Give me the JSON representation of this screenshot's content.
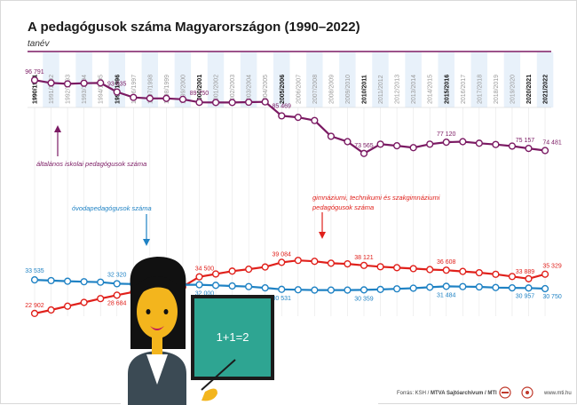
{
  "title": "A pedagógusok száma Magyarországon (1990–2022)",
  "subtitle": "tanév",
  "source_prefix": "Forrás: KSH / ",
  "source_bold": "MTVA Sajtóarchívum / MTI",
  "website": "www.mti.hu",
  "illustration": {
    "board_text": "1+1=2"
  },
  "colors": {
    "primary": "#7b1a63",
    "secondary": "#e0201b",
    "preschool": "#1f82c4",
    "band": "#e8f1fa"
  },
  "chart_data": {
    "type": "line",
    "categories": [
      "1990/1991",
      "1991/1992",
      "1992/1993",
      "1993/1994",
      "1994/1995",
      "1995/1996",
      "1996/1997",
      "1997/1998",
      "1998/1999",
      "1999/2000",
      "2000/2001",
      "2001/2002",
      "2002/2003",
      "2003/2004",
      "2004/2005",
      "2005/2006",
      "2006/2007",
      "2007/2008",
      "2008/2009",
      "2009/2010",
      "2010/2011",
      "2011/2012",
      "2012/2013",
      "2013/2014",
      "2014/2015",
      "2015/2016",
      "2016/2017",
      "2017/2018",
      "2018/2019",
      "2019/2020",
      "2020/2021",
      "2021/2022"
    ],
    "bold_categories": [
      "1990/1991",
      "1995/1996",
      "2000/2001",
      "2005/2006",
      "2010/2011",
      "2015/2016",
      "2020/2021",
      "2021/2022"
    ],
    "series": [
      {
        "name": "általános iskolai pedagógusok száma",
        "color": "#7b1a63",
        "values": [
          96791,
          95900,
          95600,
          95800,
          95900,
          93035,
          91300,
          91000,
          91000,
          90700,
          89750,
          89700,
          89700,
          89800,
          89900,
          85469,
          85000,
          84000,
          79000,
          77300,
          73565,
          76500,
          76000,
          75400,
          76500,
          77120,
          77300,
          76800,
          76400,
          75900,
          75157,
          74481
        ],
        "labels": [
          {
            "index": 0,
            "text": "96 791"
          },
          {
            "index": 5,
            "text": "93 035"
          },
          {
            "index": 10,
            "text": "89 750"
          },
          {
            "index": 15,
            "text": "85 469"
          },
          {
            "index": 20,
            "text": "73 565"
          },
          {
            "index": 25,
            "text": "77 120"
          },
          {
            "index": 30,
            "text": "75 157"
          },
          {
            "index": 31,
            "text": "74 481"
          }
        ]
      },
      {
        "name": "gimnáziumi, technikumi és szakgimnáziumi pedagógusok száma",
        "color": "#e0201b",
        "values": [
          22902,
          24000,
          25200,
          26400,
          27600,
          28684,
          29700,
          30200,
          30900,
          31400,
          34500,
          35400,
          36300,
          36900,
          37600,
          39084,
          39700,
          39400,
          38800,
          38600,
          38121,
          37700,
          37400,
          37100,
          36800,
          36608,
          36200,
          35800,
          35300,
          34600,
          33889,
          35329
        ],
        "labels": [
          {
            "index": 0,
            "text": "22 902"
          },
          {
            "index": 5,
            "text": "28 684"
          },
          {
            "index": 10,
            "text": "34 500"
          },
          {
            "index": 15,
            "text": "39 084"
          },
          {
            "index": 20,
            "text": "38 121"
          },
          {
            "index": 25,
            "text": "36 608"
          },
          {
            "index": 30,
            "text": "33 889"
          },
          {
            "index": 31,
            "text": "35 329"
          }
        ]
      },
      {
        "name": "óvodapedagógusok száma",
        "color": "#1f82c4",
        "values": [
          33535,
          33300,
          33100,
          32950,
          32800,
          32320,
          32200,
          32100,
          32000,
          32000,
          32000,
          31800,
          31600,
          31400,
          31000,
          30531,
          30400,
          30300,
          30300,
          30300,
          30359,
          30500,
          30700,
          30900,
          31200,
          31484,
          31400,
          31300,
          31100,
          31000,
          30957,
          30750
        ],
        "labels": [
          {
            "index": 0,
            "text": "33 535"
          },
          {
            "index": 5,
            "text": "32 320"
          },
          {
            "index": 10,
            "text": "32 000"
          },
          {
            "index": 15,
            "text": "30 531"
          },
          {
            "index": 20,
            "text": "30 359"
          },
          {
            "index": 25,
            "text": "31 484"
          },
          {
            "index": 30,
            "text": "30 957"
          },
          {
            "index": 31,
            "text": "30 750"
          }
        ]
      }
    ],
    "ylim": [
      15000,
      105000
    ]
  }
}
